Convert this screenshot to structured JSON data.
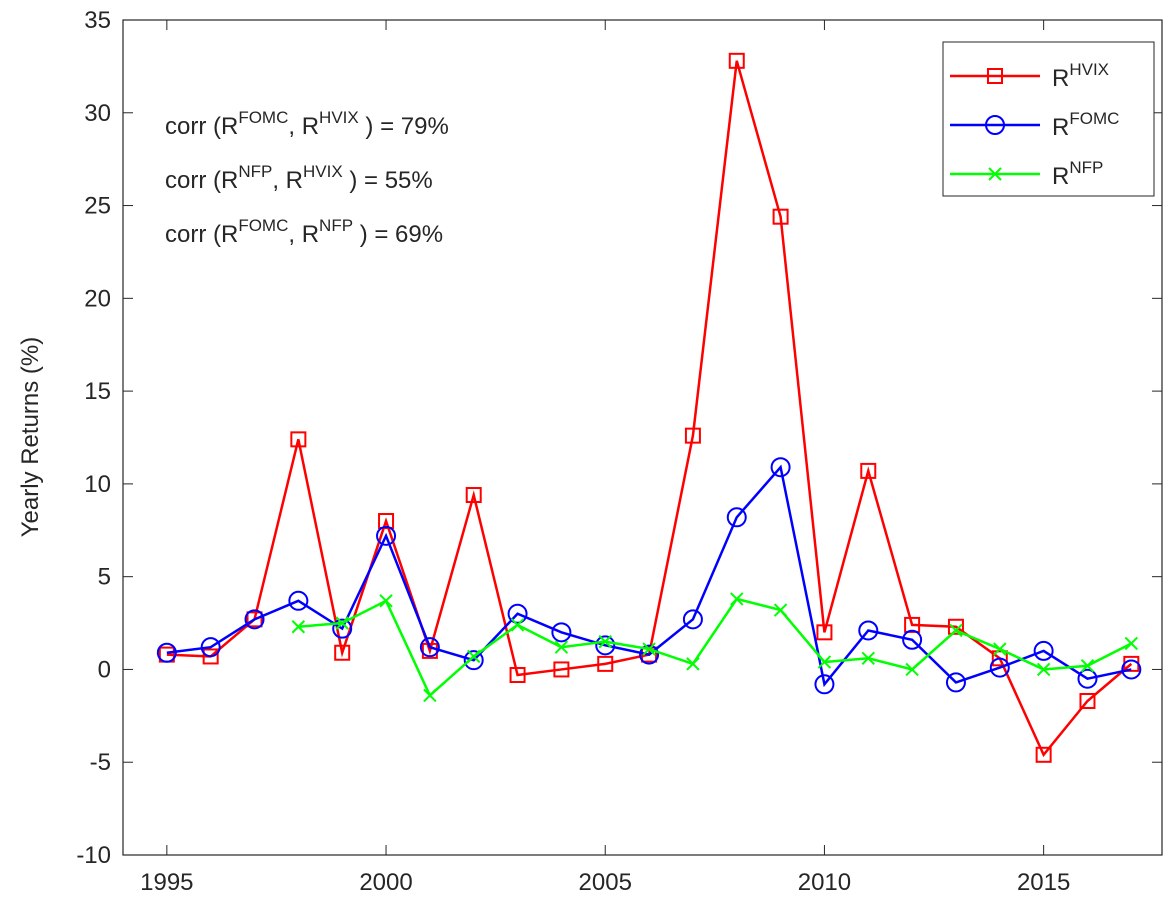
{
  "chart_data": {
    "type": "line",
    "y_label": "Yearly Returns (%)",
    "x": [
      1995,
      1996,
      1997,
      1998,
      1999,
      2000,
      2001,
      2002,
      2003,
      2004,
      2005,
      2006,
      2007,
      2008,
      2009,
      2010,
      2011,
      2012,
      2013,
      2014,
      2015,
      2016,
      2017
    ],
    "series": [
      {
        "name": "R",
        "name_sup": "HVIX",
        "color": "#ff0000",
        "marker": "square",
        "values": [
          0.8,
          0.7,
          2.7,
          12.4,
          0.9,
          8.0,
          1.0,
          9.4,
          -0.3,
          0.0,
          0.3,
          0.8,
          12.6,
          32.8,
          24.4,
          2.0,
          10.7,
          2.4,
          2.3,
          0.6,
          -4.6,
          -1.7,
          0.3
        ]
      },
      {
        "name": "R",
        "name_sup": "FOMC",
        "color": "#0000ff",
        "marker": "circle",
        "values": [
          0.9,
          1.2,
          2.7,
          3.7,
          2.2,
          7.2,
          1.2,
          0.5,
          3.0,
          2.0,
          1.3,
          0.8,
          2.7,
          8.2,
          10.9,
          -0.8,
          2.1,
          1.6,
          -0.7,
          0.1,
          1.0,
          -0.5,
          0.0
        ]
      },
      {
        "name": "R",
        "name_sup": "NFP",
        "color": "#00ff00",
        "marker": "x",
        "values": [
          null,
          null,
          null,
          2.3,
          2.5,
          3.7,
          -1.4,
          0.7,
          2.4,
          1.2,
          1.5,
          1.1,
          0.3,
          3.8,
          3.2,
          0.4,
          0.6,
          0.0,
          2.1,
          1.1,
          0.0,
          0.2,
          1.4
        ]
      }
    ],
    "annotations": [
      {
        "parts": [
          {
            "text": "corr (R"
          },
          {
            "text": "FOMC",
            "sup": true
          },
          {
            "text": ", R"
          },
          {
            "text": "HVIX",
            "sup": true
          },
          {
            "text": " ) = 79%"
          }
        ]
      },
      {
        "parts": [
          {
            "text": "corr (R"
          },
          {
            "text": "NFP",
            "sup": true
          },
          {
            "text": ", R"
          },
          {
            "text": "HVIX",
            "sup": true
          },
          {
            "text": " ) = 55%"
          }
        ]
      },
      {
        "parts": [
          {
            "text": "corr (R"
          },
          {
            "text": "FOMC",
            "sup": true
          },
          {
            "text": ", R"
          },
          {
            "text": "NFP",
            "sup": true
          },
          {
            "text": " ) = 69%"
          }
        ]
      }
    ],
    "xlim": [
      1994,
      2017.7
    ],
    "ylim": [
      -10,
      35
    ],
    "xticks": [
      1995,
      2000,
      2005,
      2010,
      2015
    ],
    "yticks": [
      -10,
      -5,
      0,
      5,
      10,
      15,
      20,
      25,
      30,
      35
    ],
    "legend": "top-right",
    "grid": false
  }
}
